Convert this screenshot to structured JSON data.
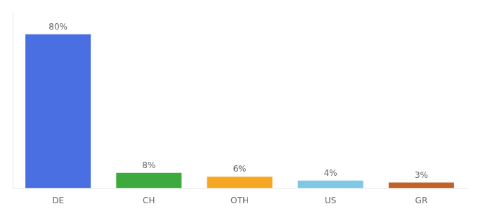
{
  "chart_data": {
    "type": "bar",
    "categories": [
      "DE",
      "CH",
      "OTH",
      "US",
      "GR"
    ],
    "values": [
      80,
      8,
      6,
      4,
      3
    ],
    "value_labels": [
      "80%",
      "8%",
      "6%",
      "4%",
      "3%"
    ],
    "colors": [
      "#4A6FE3",
      "#3DAA3D",
      "#F5A623",
      "#7EC8E3",
      "#C0622A"
    ],
    "ylim": [
      0,
      92
    ],
    "data_labels": true,
    "tick_labels": "x",
    "grid": false
  }
}
